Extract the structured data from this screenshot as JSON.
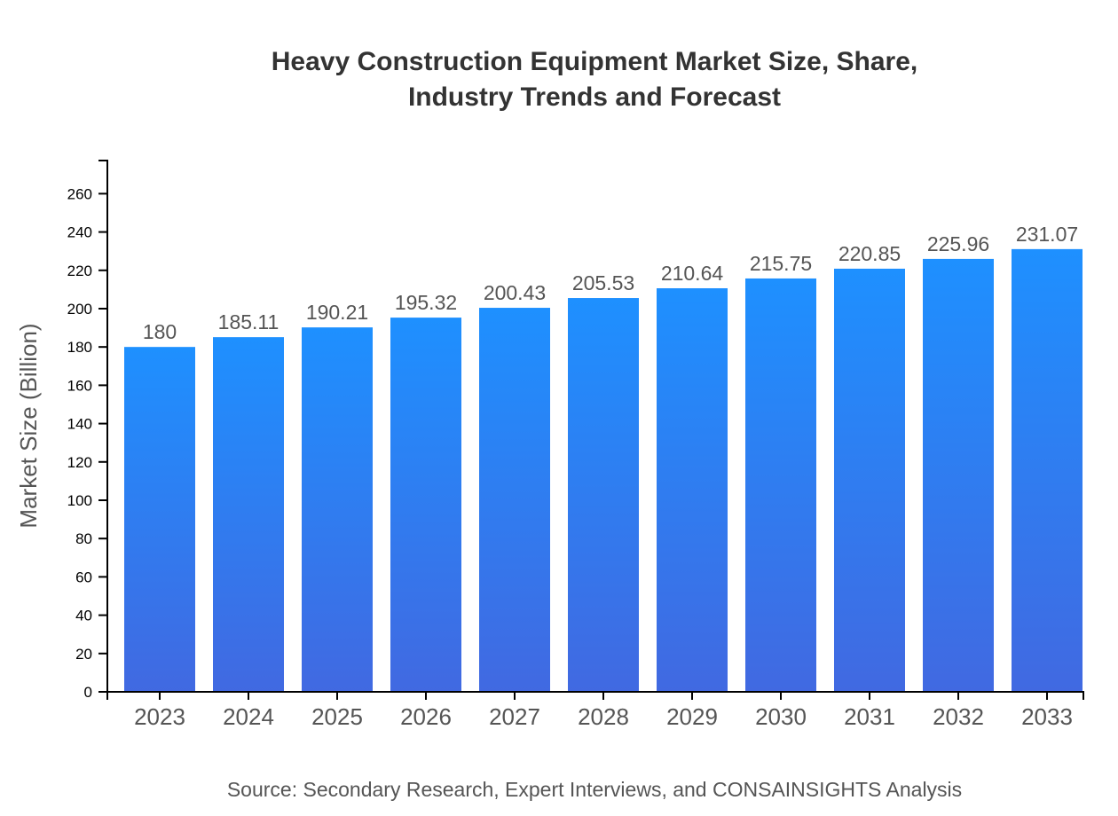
{
  "chart_data": {
    "type": "bar",
    "title_lines": [
      "Heavy Construction Equipment Market Size, Share,",
      "Industry Trends and Forecast"
    ],
    "categories": [
      "2023",
      "2024",
      "2025",
      "2026",
      "2027",
      "2028",
      "2029",
      "2030",
      "2031",
      "2032",
      "2033"
    ],
    "values": [
      180,
      185.11,
      190.21,
      195.32,
      200.43,
      205.53,
      210.64,
      215.75,
      220.85,
      225.96,
      231.07
    ],
    "value_labels": [
      "180",
      "185.11",
      "190.21",
      "195.32",
      "200.43",
      "205.53",
      "210.64",
      "215.75",
      "220.85",
      "225.96",
      "231.07"
    ],
    "xlabel": "",
    "ylabel": "Market Size (Billion)",
    "ylim": [
      0,
      277.3
    ],
    "yticks": [
      0,
      20,
      40,
      60,
      80,
      100,
      120,
      140,
      160,
      180,
      200,
      220,
      240,
      260
    ],
    "grid": false,
    "legend": "none",
    "colors": {
      "bar_top": "#1e90ff",
      "bar_bottom": "#4169e1"
    }
  },
  "source": "Source: Secondary Research, Expert Interviews, and CONSAINSIGHTS Analysis"
}
